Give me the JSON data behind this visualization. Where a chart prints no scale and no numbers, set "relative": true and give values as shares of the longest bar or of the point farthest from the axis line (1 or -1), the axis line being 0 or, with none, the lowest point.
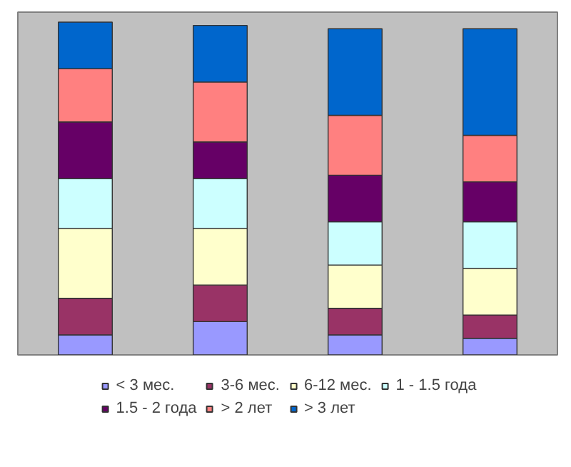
{
  "chart_data": {
    "type": "bar",
    "stacked": true,
    "relative": true,
    "categories": [
      null,
      null,
      null,
      null
    ],
    "legend": "bottom",
    "series": [
      {
        "name": "< 3 мес.",
        "color": "#9999ff",
        "values": [
          0.06,
          0.1,
          0.06,
          0.05
        ]
      },
      {
        "name": "3-6 мес.",
        "color": "#993366",
        "values": [
          0.11,
          0.11,
          0.08,
          0.07
        ]
      },
      {
        "name": "6-12 мес.",
        "color": "#ffffcc",
        "values": [
          0.21,
          0.17,
          0.13,
          0.14
        ]
      },
      {
        "name": "1 - 1.5 года",
        "color": "#ccffff",
        "values": [
          0.15,
          0.15,
          0.13,
          0.14
        ]
      },
      {
        "name": "1.5 - 2 года",
        "color": "#660066",
        "values": [
          0.17,
          0.11,
          0.14,
          0.12
        ]
      },
      {
        "name": "> 2 лет",
        "color": "#ff8080",
        "values": [
          0.16,
          0.18,
          0.18,
          0.14
        ]
      },
      {
        "name": "> 3 лет",
        "color": "#0066cc",
        "values": [
          0.14,
          0.17,
          0.26,
          0.32
        ]
      }
    ]
  }
}
